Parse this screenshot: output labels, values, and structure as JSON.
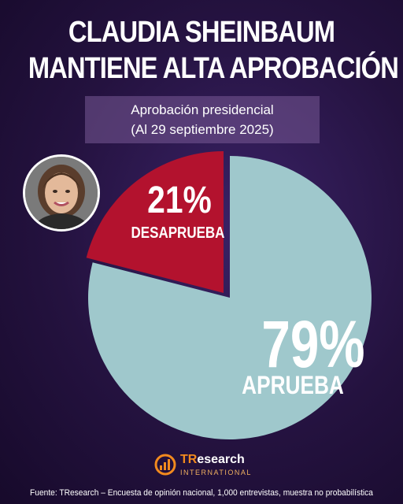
{
  "title_line1": "CLAUDIA SHEINBAUM",
  "title_line2": "MANTIENE ALTA APROBACIÓN",
  "subtitle_line1": "Aprobación presidencial",
  "subtitle_line2": "(Al 29 septiembre 2025)",
  "logo": {
    "name_prefix": "TR",
    "name_rest": "esearch",
    "sub": "INTERNATIONAL"
  },
  "source": "Fuente: TResearch – Encuesta de opinión nacional, 1,000 entrevistas, muestra no probabilística",
  "colors": {
    "aprueba": "#9fc8cc",
    "desaprueba": "#b3122e"
  },
  "chart_data": {
    "type": "pie",
    "title": "Aprobación presidencial",
    "subtitle": "(Al 29 septiembre 2025)",
    "slices": [
      {
        "label": "APRUEBA",
        "value": 79,
        "value_label": "79%",
        "color": "#9fc8cc"
      },
      {
        "label": "DESAPRUEBA",
        "value": 21,
        "value_label": "21%",
        "color": "#b3122e"
      }
    ]
  }
}
